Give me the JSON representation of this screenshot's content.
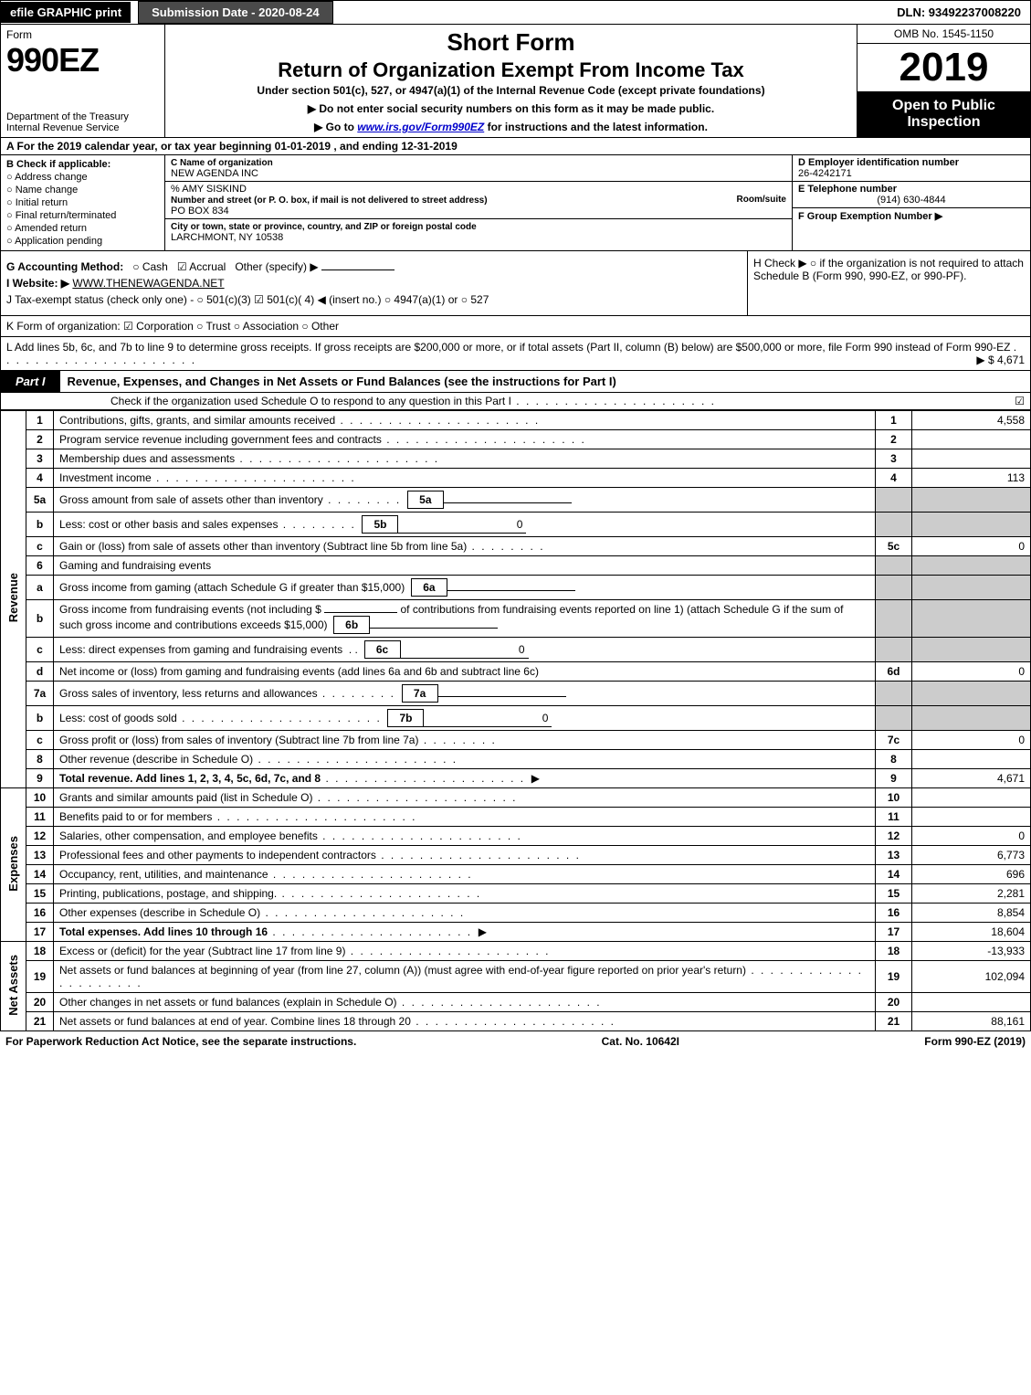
{
  "top": {
    "efile": "efile GRAPHIC print",
    "submission": "Submission Date - 2020-08-24",
    "dln": "DLN: 93492237008220"
  },
  "header": {
    "form_label": "Form",
    "form_number": "990EZ",
    "dept1": "Department of the Treasury",
    "dept2": "Internal Revenue Service",
    "short_form": "Short Form",
    "return_title": "Return of Organization Exempt From Income Tax",
    "under_section": "Under section 501(c), 527, or 4947(a)(1) of the Internal Revenue Code (except private foundations)",
    "ssn_line": "▶ Do not enter social security numbers on this form as it may be made public.",
    "goto_pre": "▶ Go to ",
    "goto_link": "www.irs.gov/Form990EZ",
    "goto_post": " for instructions and the latest information.",
    "omb": "OMB No. 1545-1150",
    "year": "2019",
    "open_to": "Open to Public Inspection"
  },
  "row_a": "A For the 2019 calendar year, or tax year beginning 01-01-2019 , and ending 12-31-2019",
  "col_b": {
    "label": "B Check if applicable:",
    "items": [
      "Address change",
      "Name change",
      "Initial return",
      "Final return/terminated",
      "Amended return",
      "Application pending"
    ]
  },
  "col_c": {
    "name_label": "C Name of organization",
    "name": "NEW AGENDA INC",
    "care_of": "% AMY SISKIND",
    "street_label": "Number and street (or P. O. box, if mail is not delivered to street address)",
    "room_label": "Room/suite",
    "street": "PO BOX 834",
    "city_label": "City or town, state or province, country, and ZIP or foreign postal code",
    "city": "LARCHMONT, NY  10538"
  },
  "col_def": {
    "d_label": "D Employer identification number",
    "d_value": "26-4242171",
    "e_label": "E Telephone number",
    "e_value": "(914) 630-4844",
    "f_label": "F Group Exemption Number  ▶"
  },
  "sec_g": {
    "accounting": "G Accounting Method:",
    "cash": "Cash",
    "accrual": "Accrual",
    "other": "Other (specify) ▶",
    "website_label": "I Website: ▶",
    "website": "WWW.THENEWAGENDA.NET",
    "tax_exempt": "J Tax-exempt status (check only one) - ○ 501(c)(3)  ☑ 501(c)( 4) ◀ (insert no.)  ○ 4947(a)(1) or  ○ 527",
    "h_text": "H  Check ▶  ○  if the organization is not required to attach Schedule B (Form 990, 990-EZ, or 990-PF)."
  },
  "sec_k": "K Form of organization:   ☑ Corporation   ○ Trust   ○ Association   ○ Other",
  "sec_l": {
    "text": "L Add lines 5b, 6c, and 7b to line 9 to determine gross receipts. If gross receipts are $200,000 or more, or if total assets (Part II, column (B) below) are $500,000 or more, file Form 990 instead of Form 990-EZ",
    "amount": "▶ $ 4,671"
  },
  "part1": {
    "tab": "Part I",
    "title": "Revenue, Expenses, and Changes in Net Assets or Fund Balances (see the instructions for Part I)",
    "sub": "Check if the organization used Schedule O to respond to any question in this Part I",
    "sub_check": "☑"
  },
  "sides": {
    "revenue": "Revenue",
    "expenses": "Expenses",
    "netassets": "Net Assets"
  },
  "lines": {
    "1": {
      "n": "1",
      "t": "Contributions, gifts, grants, and similar amounts received",
      "r": "1",
      "v": "4,558"
    },
    "2": {
      "n": "2",
      "t": "Program service revenue including government fees and contracts",
      "r": "2",
      "v": ""
    },
    "3": {
      "n": "3",
      "t": "Membership dues and assessments",
      "r": "3",
      "v": ""
    },
    "4": {
      "n": "4",
      "t": "Investment income",
      "r": "4",
      "v": "113"
    },
    "5a": {
      "n": "5a",
      "t": "Gross amount from sale of assets other than inventory",
      "box": "5a",
      "bv": ""
    },
    "5b": {
      "n": "b",
      "t": "Less: cost or other basis and sales expenses",
      "box": "5b",
      "bv": "0"
    },
    "5c": {
      "n": "c",
      "t": "Gain or (loss) from sale of assets other than inventory (Subtract line 5b from line 5a)",
      "r": "5c",
      "v": "0"
    },
    "6": {
      "n": "6",
      "t": "Gaming and fundraising events"
    },
    "6a": {
      "n": "a",
      "t": "Gross income from gaming (attach Schedule G if greater than $15,000)",
      "box": "6a",
      "bv": ""
    },
    "6b": {
      "n": "b",
      "t": "Gross income from fundraising events (not including $",
      "t2": "of contributions from fundraising events reported on line 1) (attach Schedule G if the sum of such gross income and contributions exceeds $15,000)",
      "box": "6b",
      "bv": ""
    },
    "6c": {
      "n": "c",
      "t": "Less: direct expenses from gaming and fundraising events",
      "box": "6c",
      "bv": "0"
    },
    "6d": {
      "n": "d",
      "t": "Net income or (loss) from gaming and fundraising events (add lines 6a and 6b and subtract line 6c)",
      "r": "6d",
      "v": "0"
    },
    "7a": {
      "n": "7a",
      "t": "Gross sales of inventory, less returns and allowances",
      "box": "7a",
      "bv": ""
    },
    "7b": {
      "n": "b",
      "t": "Less: cost of goods sold",
      "box": "7b",
      "bv": "0"
    },
    "7c": {
      "n": "c",
      "t": "Gross profit or (loss) from sales of inventory (Subtract line 7b from line 7a)",
      "r": "7c",
      "v": "0"
    },
    "8": {
      "n": "8",
      "t": "Other revenue (describe in Schedule O)",
      "r": "8",
      "v": ""
    },
    "9": {
      "n": "9",
      "t": "Total revenue. Add lines 1, 2, 3, 4, 5c, 6d, 7c, and 8",
      "r": "9",
      "v": "4,671",
      "arrow": true,
      "bold": true
    },
    "10": {
      "n": "10",
      "t": "Grants and similar amounts paid (list in Schedule O)",
      "r": "10",
      "v": ""
    },
    "11": {
      "n": "11",
      "t": "Benefits paid to or for members",
      "r": "11",
      "v": ""
    },
    "12": {
      "n": "12",
      "t": "Salaries, other compensation, and employee benefits",
      "r": "12",
      "v": "0"
    },
    "13": {
      "n": "13",
      "t": "Professional fees and other payments to independent contractors",
      "r": "13",
      "v": "6,773"
    },
    "14": {
      "n": "14",
      "t": "Occupancy, rent, utilities, and maintenance",
      "r": "14",
      "v": "696"
    },
    "15": {
      "n": "15",
      "t": "Printing, publications, postage, and shipping.",
      "r": "15",
      "v": "2,281"
    },
    "16": {
      "n": "16",
      "t": "Other expenses (describe in Schedule O)",
      "r": "16",
      "v": "8,854"
    },
    "17": {
      "n": "17",
      "t": "Total expenses. Add lines 10 through 16",
      "r": "17",
      "v": "18,604",
      "arrow": true,
      "bold": true
    },
    "18": {
      "n": "18",
      "t": "Excess or (deficit) for the year (Subtract line 17 from line 9)",
      "r": "18",
      "v": "-13,933"
    },
    "19": {
      "n": "19",
      "t": "Net assets or fund balances at beginning of year (from line 27, column (A)) (must agree with end-of-year figure reported on prior year's return)",
      "r": "19",
      "v": "102,094"
    },
    "20": {
      "n": "20",
      "t": "Other changes in net assets or fund balances (explain in Schedule O)",
      "r": "20",
      "v": ""
    },
    "21": {
      "n": "21",
      "t": "Net assets or fund balances at end of year. Combine lines 18 through 20",
      "r": "21",
      "v": "88,161"
    }
  },
  "footer": {
    "left": "For Paperwork Reduction Act Notice, see the separate instructions.",
    "center": "Cat. No. 10642I",
    "right": "Form 990-EZ (2019)"
  }
}
